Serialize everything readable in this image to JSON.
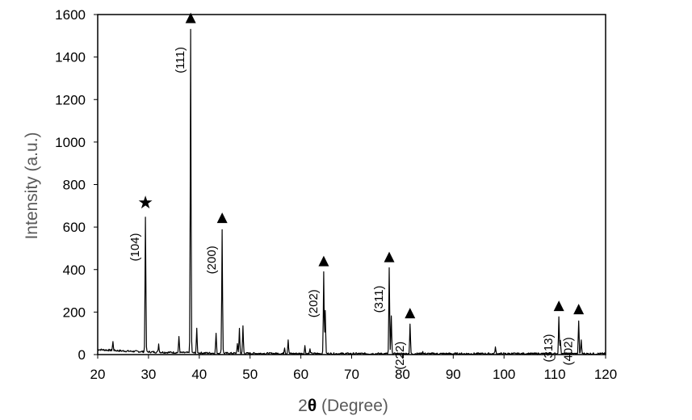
{
  "chart_data": {
    "type": "line",
    "xlabel_prefix": "2",
    "xlabel_symbol": "θ",
    "xlabel_suffix": " (Degree)",
    "ylabel": "Intensity (a.u.)",
    "xlim": [
      20,
      120
    ],
    "ylim": [
      0,
      1600
    ],
    "xticks": [
      "20",
      "30",
      "40",
      "50",
      "60",
      "70",
      "80",
      "90",
      "100",
      "110",
      "120"
    ],
    "yticks": [
      "0",
      "200",
      "400",
      "600",
      "800",
      "1000",
      "1200",
      "1400",
      "1600"
    ],
    "grid": false,
    "legend": "none",
    "line_color": "#000000",
    "baseline": 20,
    "peaks": [
      {
        "x": 23.0,
        "y": 60
      },
      {
        "x": 29.4,
        "y": 650
      },
      {
        "x": 32.0,
        "y": 50
      },
      {
        "x": 36.0,
        "y": 85
      },
      {
        "x": 38.3,
        "y": 1530
      },
      {
        "x": 39.5,
        "y": 120
      },
      {
        "x": 43.3,
        "y": 100
      },
      {
        "x": 44.5,
        "y": 590
      },
      {
        "x": 47.5,
        "y": 50
      },
      {
        "x": 47.9,
        "y": 125
      },
      {
        "x": 48.6,
        "y": 135
      },
      {
        "x": 56.8,
        "y": 35
      },
      {
        "x": 57.5,
        "y": 70
      },
      {
        "x": 60.8,
        "y": 40
      },
      {
        "x": 61.8,
        "y": 25
      },
      {
        "x": 64.5,
        "y": 385
      },
      {
        "x": 64.8,
        "y": 210
      },
      {
        "x": 77.4,
        "y": 405
      },
      {
        "x": 77.8,
        "y": 180
      },
      {
        "x": 81.5,
        "y": 140
      },
      {
        "x": 84.0,
        "y": 15
      },
      {
        "x": 98.3,
        "y": 35
      },
      {
        "x": 110.8,
        "y": 175
      },
      {
        "x": 111.1,
        "y": 70
      },
      {
        "x": 114.7,
        "y": 160
      },
      {
        "x": 115.2,
        "y": 70
      }
    ],
    "annotations": [
      {
        "label": "(104)",
        "x": 29.4,
        "y": 650,
        "marker": "★"
      },
      {
        "label": "(111)",
        "x": 38.3,
        "y": 1530,
        "marker": "▲"
      },
      {
        "label": "(200)",
        "x": 44.5,
        "y": 590,
        "marker": "▲"
      },
      {
        "label": "(202)",
        "x": 64.5,
        "y": 385,
        "marker": "▲"
      },
      {
        "label": "(311)",
        "x": 77.4,
        "y": 405,
        "marker": "▲"
      },
      {
        "label": "(222)",
        "x": 81.5,
        "y": 140,
        "marker": "▲"
      },
      {
        "label": "(313)",
        "x": 110.8,
        "y": 175,
        "marker": "▲"
      },
      {
        "label": "(402)",
        "x": 114.7,
        "y": 160,
        "marker": "▲"
      }
    ]
  }
}
